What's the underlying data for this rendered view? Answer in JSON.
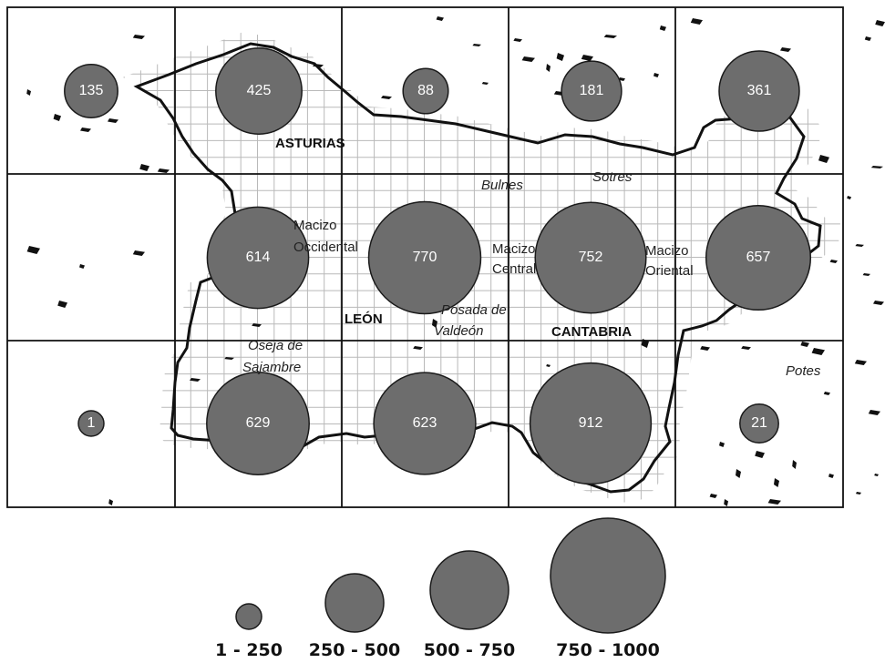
{
  "map": {
    "regions": [
      "ASTURIAS",
      "LEÓN",
      "CANTABRIA"
    ],
    "massifs": [
      [
        "Macizo",
        "Occidental"
      ],
      [
        "Macizo",
        "Central"
      ],
      [
        "Macizo",
        "Oriental"
      ]
    ],
    "places": [
      [
        "Bulnes"
      ],
      [
        "Sotres"
      ],
      [
        "Posada de",
        "Valdeón"
      ],
      [
        "Oseja de",
        "Sajambre"
      ],
      [
        "Potes"
      ]
    ],
    "cells": [
      {
        "label": "135",
        "count": 135
      },
      {
        "label": "425",
        "count": 425
      },
      {
        "label": "88",
        "count": 88
      },
      {
        "label": "181",
        "count": 181
      },
      {
        "label": "361",
        "count": 361
      },
      {
        "label": "614",
        "count": 614
      },
      {
        "label": "770",
        "count": 770
      },
      {
        "label": "752",
        "count": 752
      },
      {
        "label": "657",
        "count": 657
      },
      {
        "label": "1",
        "count": 1
      },
      {
        "label": "629",
        "count": 629
      },
      {
        "label": "623",
        "count": 623
      },
      {
        "label": "912",
        "count": 912
      },
      {
        "label": "21",
        "count": 21
      }
    ]
  },
  "legend": [
    {
      "label": "1 - 250"
    },
    {
      "label": "250 - 500"
    },
    {
      "label": "500 - 750"
    },
    {
      "label": "750 - 1000"
    }
  ],
  "colors": {
    "circle_fill": "#6d6d6d",
    "circle_stroke": "#1a1a1a",
    "grid": "#b9b9b9",
    "frame": "#111111",
    "boundary": "#111111",
    "patches": "#111111"
  }
}
